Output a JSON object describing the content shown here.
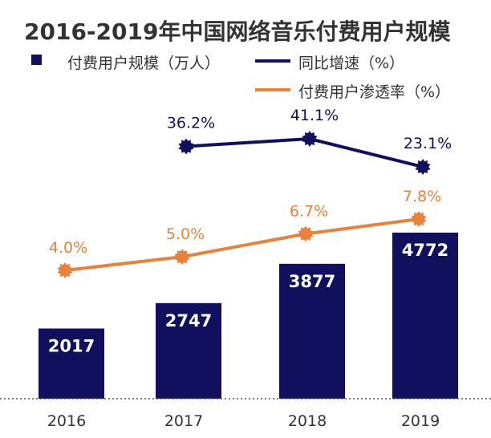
{
  "chart_data": {
    "type": "bar",
    "title": "2016-2019年中国网络音乐付费用户规模",
    "categories": [
      "2016",
      "2017",
      "2018",
      "2019"
    ],
    "series": [
      {
        "name": "付费用户规模（万人）",
        "type": "bar",
        "axis": "left",
        "values": [
          2017,
          2747,
          3877,
          4772
        ],
        "labels": [
          "2017",
          "2747",
          "3877",
          "4772"
        ],
        "color": "#10105e"
      },
      {
        "name": "同比增速（%）",
        "type": "line",
        "axis": "right-top",
        "values": [
          null,
          36.2,
          41.1,
          23.1
        ],
        "labels": [
          null,
          "36.2%",
          "41.1%",
          "23.1%"
        ],
        "color": "#10105e"
      },
      {
        "name": "付费用户渗透率（%）",
        "type": "line",
        "axis": "right-mid",
        "values": [
          4.0,
          5.0,
          6.7,
          7.8
        ],
        "labels": [
          "4.0%",
          "5.0%",
          "6.7%",
          "7.8%"
        ],
        "color": "#e8823a"
      }
    ],
    "legend_position": "top",
    "grid": false,
    "xlabel": "",
    "ylabel": ""
  },
  "colors": {
    "bar": "#10105e",
    "growth_line": "#10105e",
    "penetration_line": "#e8823a",
    "title": "#333333",
    "axis_text": "#333333",
    "baseline": "#555555"
  },
  "legend": {
    "bar_label": "付费用户规模（万人）",
    "growth_label": "同比增速（%）",
    "penetration_label": "付费用户渗透率（%）"
  }
}
